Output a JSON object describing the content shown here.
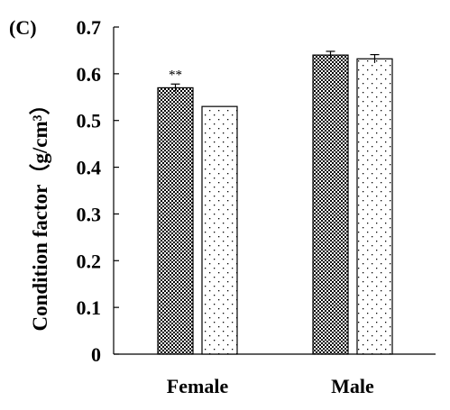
{
  "chart_data": {
    "type": "bar",
    "panel_label": "(C)",
    "title": "",
    "xlabel": "",
    "ylabel": "Condition factor",
    "ylabel_unit": "（g/cm³）",
    "ylim": [
      0,
      0.7
    ],
    "yticks": [
      "0",
      "0.1",
      "0.2",
      "0.3",
      "0.4",
      "0.5",
      "0.6",
      "0.7"
    ],
    "categories": [
      "Female",
      "Male"
    ],
    "series": [
      {
        "values": [
          0.57,
          0.64
        ],
        "errors": [
          0.008,
          0.008
        ],
        "pattern": "checker"
      },
      {
        "values": [
          0.53,
          0.632
        ],
        "errors": [
          0.0,
          0.009
        ],
        "pattern": "dots"
      }
    ],
    "annotations": [
      {
        "category": "Female",
        "series": 0,
        "text": "**"
      }
    ],
    "grid": false,
    "legend": "none",
    "colors": {
      "bar_stroke": "#000000",
      "bar_fill_bg": "#ffffff",
      "text": "#000000"
    }
  }
}
